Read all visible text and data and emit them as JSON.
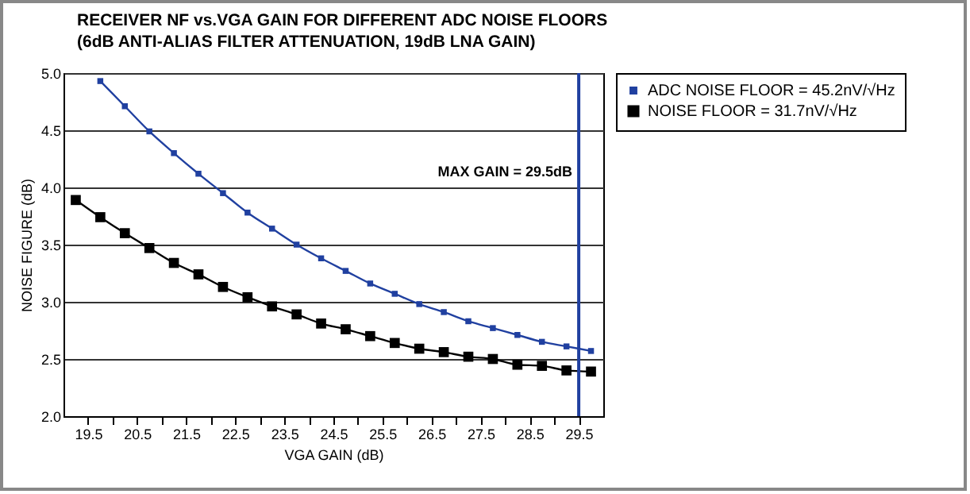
{
  "chart_data": {
    "type": "line",
    "title": "RECEIVER NF vs.VGA GAIN FOR DIFFERENT ADC NOISE FLOORS",
    "subtitle": "(6dB ANTI-ALIAS FILTER ATTENUATION, 19dB LNA GAIN)",
    "xlabel": "VGA GAIN (dB)",
    "ylabel": "NOISE FIGURE (dB)",
    "x": [
      19.25,
      19.75,
      20.25,
      20.75,
      21.25,
      21.75,
      22.25,
      22.75,
      23.25,
      23.75,
      24.25,
      24.75,
      25.25,
      25.75,
      26.25,
      26.75,
      27.25,
      27.75,
      28.25,
      28.75,
      29.25,
      29.75
    ],
    "series": [
      {
        "name": "ADC NOISE FLOOR = 45.2nV/√Hz",
        "color": "#2040a0",
        "marker": "square",
        "values": [
          null,
          4.93,
          4.71,
          4.49,
          4.3,
          4.12,
          3.95,
          3.78,
          3.64,
          3.5,
          3.38,
          3.27,
          3.16,
          3.07,
          2.98,
          2.91,
          2.83,
          2.77,
          2.71,
          2.65,
          2.61,
          2.57
        ]
      },
      {
        "name": "NOISE FLOOR = 31.7nV/√Hz",
        "color": "#000000",
        "marker": "square",
        "values": [
          3.89,
          3.74,
          3.6,
          3.47,
          3.34,
          3.24,
          3.13,
          3.04,
          2.96,
          2.89,
          2.81,
          2.76,
          2.7,
          2.64,
          2.59,
          2.56,
          2.52,
          2.5,
          2.45,
          2.44,
          2.4,
          2.39
        ]
      }
    ],
    "xlim": [
      19,
      30
    ],
    "xticks": [
      19.5,
      {
        "value": 20,
        "label": null
      },
      20.5,
      {
        "value": 21,
        "label": null
      },
      21.5,
      {
        "value": 22,
        "label": null
      },
      22.5,
      {
        "value": 23,
        "label": null
      },
      23.5,
      {
        "value": 24,
        "label": null
      },
      24.5,
      {
        "value": 25,
        "label": null
      },
      25.5,
      {
        "value": 26,
        "label": null
      },
      26.5,
      {
        "value": 27,
        "label": null
      },
      27.5,
      {
        "value": 28,
        "label": null
      },
      28.5,
      {
        "value": 29,
        "label": null
      },
      29.5
    ],
    "ylim": [
      2,
      5
    ],
    "yticks": [
      {
        "value": 2,
        "label": "2.0"
      },
      {
        "value": 2.5,
        "label": "2.5"
      },
      {
        "value": 3,
        "label": "3.0"
      },
      {
        "value": 3.5,
        "label": "3.5"
      },
      {
        "value": 4,
        "label": "4.0"
      },
      {
        "value": 4.5,
        "label": "4.5"
      },
      {
        "value": 5,
        "label": "5.0"
      }
    ],
    "ref_lines": [
      {
        "axis": "x",
        "value": 29.5,
        "label": "MAX GAIN = 29.5dB",
        "color": "#2040a0"
      }
    ],
    "grid": "y",
    "legend": "right",
    "line_style": "solid"
  }
}
